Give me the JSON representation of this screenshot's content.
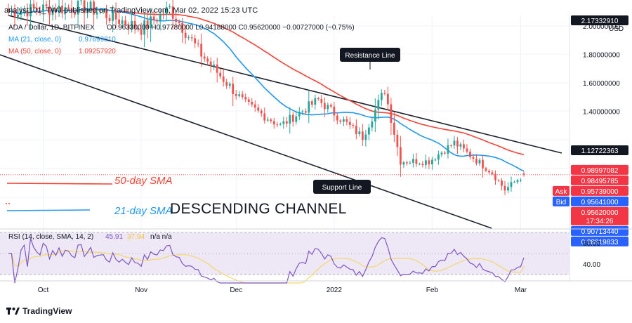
{
  "header": {
    "publisher": "analyst101_TWJ published on TradingView.com, Mar 02, 2022 15:23 UTC",
    "symbol_line": "ADA / Dollar, 1D, BITFINEX",
    "ohlc": "O0.96330000 H0.97780000 L0.94188000 C0.95620000 −0.00727000 (−0.75%)",
    "ma21": {
      "label": "MA (21, close, 0)",
      "value": "0.97699810"
    },
    "ma50": {
      "label": "MA (50, close, 0)",
      "value": "1.09257920"
    }
  },
  "price_axis": {
    "currency": "USD",
    "ticks": [
      "2.00000000",
      "1.80000000",
      "1.60000000",
      "1.40000000"
    ],
    "top_label": "2.17332910",
    "price_tags": [
      {
        "text": "1.12722363",
        "color": "#131722",
        "price": 1.1272
      },
      {
        "text": "0.98997082",
        "color": "#f23645",
        "price": 0.99
      },
      {
        "text": "0.98495785",
        "color": "#f23645",
        "price": 0.985
      },
      {
        "text": "Ask",
        "text2": "0.95739000",
        "color": "#f23645",
        "price": 0.9574
      },
      {
        "text": "Bid",
        "text2": "0.95641000",
        "color": "#2962ff",
        "price": 0.9564
      },
      {
        "text": "0.95620000",
        "text2": "17:34:26",
        "color": "#f23645",
        "price": 0.9562
      },
      {
        "text": "0.90713440",
        "color": "#2962ff",
        "price": 0.9071
      },
      {
        "text": "0.88819833",
        "color": "#2962ff",
        "price": 0.8882
      }
    ]
  },
  "annotations": {
    "resistance": "Resistance Line",
    "support": "Support Line",
    "sma50": "50-day SMA",
    "sma21": "21-day SMA",
    "channel": "DESCENDING CHANNEL"
  },
  "rsi": {
    "label": "RSI (14, close, SMA, 14, 2)",
    "value": "45.91",
    "sma_value": "37.94",
    "extra": "n/a  n/a",
    "ticks": [
      "60.00",
      "40.00"
    ]
  },
  "time_axis": {
    "labels": [
      "Oct",
      "Nov",
      "Dec",
      "2022",
      "Feb",
      "Mar"
    ]
  },
  "footer": {
    "brand": "TradingView"
  },
  "colors": {
    "bull": "#26a69a",
    "bear": "#ef5350",
    "ma21": "#2196f3",
    "ma50": "#f44336",
    "rsi": "#7e57c2",
    "rsi_sma": "#f5d76e",
    "channel": "#1e222d",
    "rsi_band": "#ede7f6"
  },
  "chart_data": {
    "type": "candlestick",
    "symbol": "ADA / Dollar",
    "timeframe": "1D",
    "ohlc_last": {
      "open": 0.9633,
      "high": 0.9778,
      "low": 0.94188,
      "close": 0.9562
    },
    "price_range": [
      0.86,
      2.2
    ],
    "key_closes": [
      {
        "date": "2021-09-20",
        "close": 2.1
      },
      {
        "date": "2021-10-01",
        "close": 2.12
      },
      {
        "date": "2021-10-15",
        "close": 2.13
      },
      {
        "date": "2021-11-01",
        "close": 1.98
      },
      {
        "date": "2021-11-10",
        "close": 2.12
      },
      {
        "date": "2021-11-20",
        "close": 1.8
      },
      {
        "date": "2021-12-04",
        "close": 1.45
      },
      {
        "date": "2021-12-15",
        "close": 1.3
      },
      {
        "date": "2021-12-27",
        "close": 1.48
      },
      {
        "date": "2022-01-10",
        "close": 1.22
      },
      {
        "date": "2022-01-17",
        "close": 1.55
      },
      {
        "date": "2022-01-22",
        "close": 1.05
      },
      {
        "date": "2022-01-31",
        "close": 1.05
      },
      {
        "date": "2022-02-08",
        "close": 1.18
      },
      {
        "date": "2022-02-20",
        "close": 0.97
      },
      {
        "date": "2022-02-24",
        "close": 0.85
      },
      {
        "date": "2022-03-02",
        "close": 0.9562
      }
    ],
    "rsi": {
      "value": 45.91,
      "sma": 37.94,
      "range": [
        20,
        80
      ],
      "bands": [
        30,
        70
      ]
    }
  }
}
